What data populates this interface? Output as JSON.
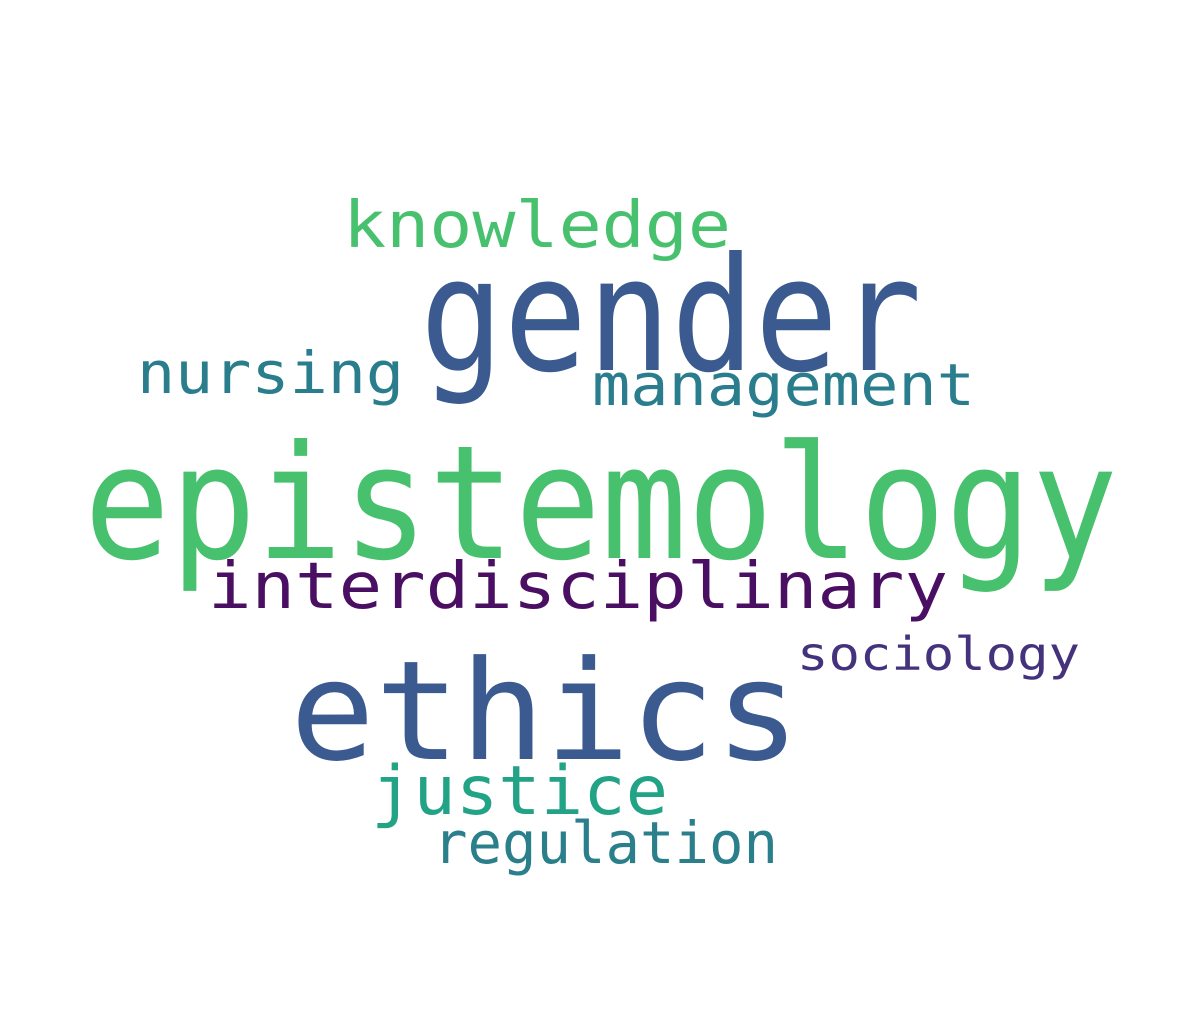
{
  "words": [
    {
      "id": "epistemology",
      "text": "epistemology",
      "color": "#48c16e"
    },
    {
      "id": "gender",
      "text": "gender",
      "color": "#3b5a8f"
    },
    {
      "id": "ethics",
      "text": "ethics",
      "color": "#3b5a8f"
    },
    {
      "id": "interdisciplinary",
      "text": "interdisciplinary",
      "color": "#4a0f62"
    },
    {
      "id": "knowledge",
      "text": "knowledge",
      "color": "#48c16e"
    },
    {
      "id": "management",
      "text": "management",
      "color": "#2a7d8c"
    },
    {
      "id": "nursing",
      "text": "nursing",
      "color": "#2a7d8c"
    },
    {
      "id": "justice",
      "text": "justice",
      "color": "#22a385"
    },
    {
      "id": "regulation",
      "text": "regulation",
      "color": "#2a7f8b"
    },
    {
      "id": "sociology",
      "text": "sociology",
      "color": "#45327d"
    }
  ]
}
